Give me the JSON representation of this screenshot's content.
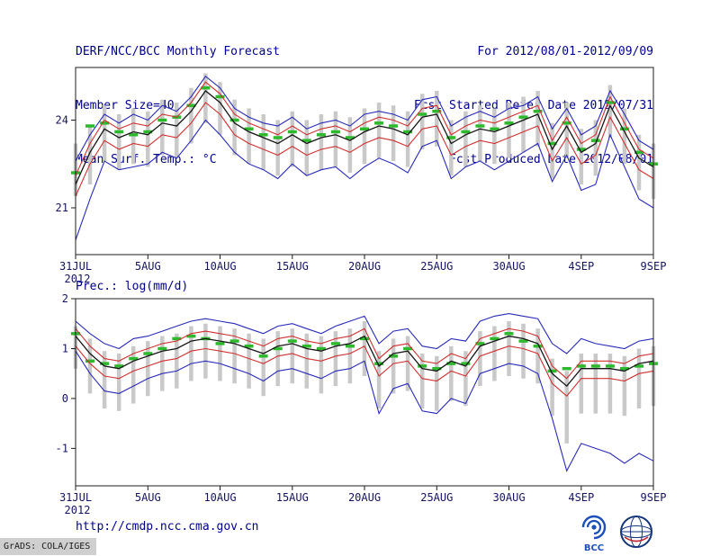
{
  "header": {
    "title": "DERF/NCC/BCC Monthly Forecast",
    "member_size": "Member Size=40",
    "for_period": "For 2012/08/01-2012/09/09",
    "refer_date": "Fcst Started Refer Date 2012/07/31",
    "produced_date": "Fcst Produced Date 2012/08/01"
  },
  "footer": {
    "url": "http://cmdp.ncc.cma.gov.cn",
    "grads_credit": "GrADS: COLA/IGES",
    "bcc_logo_label": "BCC"
  },
  "colors": {
    "header_text": "#00008b",
    "chart_text": "#15155f",
    "axis": "#1c1c1c",
    "spread_bar": "#c9c9c9",
    "climatology_green": "#2eb82e",
    "quartile_red": "#d03030",
    "envelope_blue": "#2a2ab8",
    "mean_black": "#151515"
  },
  "chart_data": [
    {
      "type": "line",
      "title": "Mean Surf. Temp.: °C",
      "x_tick_labels": [
        "31JUL",
        "5AUG",
        "10AUG",
        "15AUG",
        "20AUG",
        "25AUG",
        "30AUG",
        "4SEP",
        "9SEP"
      ],
      "x_tick_positions": [
        0,
        5,
        10,
        15,
        20,
        25,
        30,
        35,
        40
      ],
      "x_year_label": "2012",
      "ylim": [
        19.4,
        25.8
      ],
      "yticks": [
        21,
        24
      ],
      "grid": false,
      "legend": "none",
      "series": [
        {
          "name": "ensemble-max",
          "color": "#2a2ab8",
          "width": 1.1,
          "values": [
            22.6,
            23.5,
            24.2,
            23.9,
            24.2,
            24.0,
            24.5,
            24.3,
            24.8,
            25.5,
            25.1,
            24.4,
            24.1,
            23.9,
            23.8,
            24.1,
            23.7,
            23.9,
            24.0,
            23.8,
            24.2,
            24.3,
            24.2,
            24.0,
            24.7,
            24.8,
            23.8,
            24.1,
            24.3,
            24.1,
            24.4,
            24.5,
            24.8,
            23.7,
            24.4,
            23.5,
            23.8,
            25.0,
            24.2,
            23.3,
            23.0
          ]
        },
        {
          "name": "upper-quartile",
          "color": "#d03030",
          "width": 1.1,
          "values": [
            22.1,
            23.2,
            24.0,
            23.7,
            23.9,
            23.8,
            24.2,
            24.1,
            24.6,
            25.3,
            24.9,
            24.2,
            23.9,
            23.7,
            23.5,
            23.8,
            23.5,
            23.7,
            23.8,
            23.6,
            23.9,
            24.1,
            24.0,
            23.8,
            24.4,
            24.5,
            23.5,
            23.8,
            24.0,
            23.9,
            24.1,
            24.3,
            24.5,
            23.3,
            24.1,
            23.2,
            23.5,
            24.8,
            23.9,
            23.0,
            22.7
          ]
        },
        {
          "name": "ensemble-mean",
          "color": "#151515",
          "width": 1.3,
          "values": [
            21.8,
            22.9,
            23.7,
            23.4,
            23.6,
            23.5,
            23.9,
            23.8,
            24.3,
            25.0,
            24.6,
            23.9,
            23.6,
            23.4,
            23.2,
            23.5,
            23.2,
            23.4,
            23.5,
            23.3,
            23.6,
            23.8,
            23.7,
            23.5,
            24.1,
            24.2,
            23.2,
            23.5,
            23.7,
            23.6,
            23.8,
            24.0,
            24.2,
            23.0,
            23.8,
            22.9,
            23.2,
            24.5,
            23.6,
            22.7,
            22.4
          ]
        },
        {
          "name": "lower-quartile",
          "color": "#d03030",
          "width": 1.1,
          "values": [
            21.4,
            22.5,
            23.3,
            23.0,
            23.2,
            23.1,
            23.5,
            23.4,
            23.9,
            24.6,
            24.2,
            23.5,
            23.2,
            23.0,
            22.8,
            23.1,
            22.8,
            23.0,
            23.1,
            22.9,
            23.2,
            23.4,
            23.3,
            23.1,
            23.7,
            23.8,
            22.8,
            23.1,
            23.3,
            23.2,
            23.4,
            23.6,
            23.8,
            22.6,
            23.4,
            22.5,
            22.8,
            24.1,
            23.2,
            22.3,
            22.0
          ]
        },
        {
          "name": "ensemble-min",
          "color": "#2a2ab8",
          "width": 1.1,
          "values": [
            19.9,
            21.3,
            22.6,
            22.3,
            22.4,
            22.5,
            22.9,
            22.7,
            23.3,
            24.0,
            23.5,
            22.9,
            22.5,
            22.3,
            22.0,
            22.5,
            22.1,
            22.3,
            22.4,
            22.0,
            22.4,
            22.7,
            22.5,
            22.2,
            23.1,
            23.3,
            22.0,
            22.4,
            22.6,
            22.3,
            22.6,
            22.9,
            23.2,
            21.9,
            22.8,
            21.6,
            21.8,
            23.5,
            22.4,
            21.3,
            21.0
          ]
        }
      ],
      "bars": {
        "name": "ensemble-spread-bar",
        "color": "#c9c9c9",
        "top": [
          23.2,
          23.8,
          24.5,
          24.2,
          24.4,
          24.3,
          24.7,
          24.6,
          25.1,
          25.6,
          25.3,
          24.7,
          24.4,
          24.2,
          24.0,
          24.3,
          24.0,
          24.2,
          24.3,
          24.1,
          24.4,
          24.6,
          24.5,
          24.3,
          24.9,
          25.0,
          24.0,
          24.3,
          24.5,
          24.4,
          24.6,
          24.8,
          25.0,
          23.9,
          24.6,
          23.7,
          24.0,
          25.2,
          24.4,
          23.5,
          23.2
        ],
        "bottom": [
          21.4,
          21.8,
          22.6,
          22.3,
          22.5,
          22.4,
          22.8,
          22.7,
          23.2,
          23.9,
          23.5,
          22.8,
          22.5,
          22.3,
          22.1,
          22.4,
          22.1,
          22.3,
          22.4,
          22.2,
          22.5,
          22.7,
          22.6,
          22.4,
          23.0,
          23.1,
          22.1,
          22.4,
          22.6,
          22.5,
          22.7,
          22.9,
          23.1,
          22.0,
          22.7,
          21.8,
          22.1,
          23.4,
          22.5,
          21.6,
          21.3
        ]
      },
      "dashes": {
        "name": "climatology-dash",
        "color": "#2eb82e",
        "values": [
          22.2,
          23.8,
          23.9,
          23.6,
          23.5,
          23.6,
          24.0,
          24.1,
          24.5,
          25.1,
          24.8,
          24.0,
          23.7,
          23.5,
          23.4,
          23.6,
          23.3,
          23.5,
          23.6,
          23.4,
          23.7,
          23.9,
          23.8,
          23.6,
          24.2,
          24.3,
          23.4,
          23.6,
          23.8,
          23.7,
          23.9,
          24.1,
          24.3,
          23.2,
          23.9,
          23.0,
          23.3,
          24.6,
          23.7,
          22.9,
          22.5
        ]
      }
    },
    {
      "type": "line",
      "title": "Prec.: log(mm/d)",
      "x_tick_labels": [
        "31JUL",
        "5AUG",
        "10AUG",
        "15AUG",
        "20AUG",
        "25AUG",
        "30AUG",
        "4SEP",
        "9SEP"
      ],
      "x_tick_positions": [
        0,
        5,
        10,
        15,
        20,
        25,
        30,
        35,
        40
      ],
      "x_year_label": "2012",
      "ylim": [
        -1.75,
        2.0
      ],
      "yticks": [
        -1,
        0,
        1,
        2
      ],
      "grid": false,
      "legend": "none",
      "series": [
        {
          "name": "ensemble-max",
          "color": "#2a2ab8",
          "width": 1.1,
          "values": [
            1.55,
            1.3,
            1.1,
            1.0,
            1.2,
            1.25,
            1.35,
            1.45,
            1.55,
            1.6,
            1.55,
            1.5,
            1.4,
            1.3,
            1.45,
            1.5,
            1.4,
            1.3,
            1.45,
            1.55,
            1.65,
            1.1,
            1.35,
            1.4,
            1.05,
            1.0,
            1.2,
            1.15,
            1.55,
            1.65,
            1.7,
            1.65,
            1.6,
            1.1,
            0.9,
            1.2,
            1.1,
            1.05,
            1.0,
            1.15,
            1.2
          ]
        },
        {
          "name": "upper-quartile",
          "color": "#d03030",
          "width": 1.1,
          "values": [
            1.4,
            1.05,
            0.8,
            0.75,
            0.9,
            1.0,
            1.1,
            1.15,
            1.3,
            1.35,
            1.3,
            1.25,
            1.15,
            1.05,
            1.2,
            1.25,
            1.15,
            1.1,
            1.2,
            1.25,
            1.4,
            0.8,
            1.05,
            1.1,
            0.75,
            0.7,
            0.9,
            0.8,
            1.2,
            1.3,
            1.4,
            1.35,
            1.25,
            0.65,
            0.4,
            0.75,
            0.75,
            0.75,
            0.7,
            0.85,
            0.9
          ]
        },
        {
          "name": "ensemble-mean",
          "color": "#151515",
          "width": 1.3,
          "values": [
            1.25,
            0.9,
            0.65,
            0.6,
            0.75,
            0.85,
            0.95,
            1.0,
            1.15,
            1.2,
            1.15,
            1.1,
            1.0,
            0.9,
            1.05,
            1.1,
            1.0,
            0.95,
            1.05,
            1.1,
            1.25,
            0.65,
            0.9,
            0.95,
            0.6,
            0.55,
            0.75,
            0.65,
            1.05,
            1.15,
            1.25,
            1.2,
            1.1,
            0.5,
            0.25,
            0.6,
            0.6,
            0.6,
            0.55,
            0.7,
            0.75
          ]
        },
        {
          "name": "lower-quartile",
          "color": "#d03030",
          "width": 1.1,
          "values": [
            1.05,
            0.7,
            0.45,
            0.4,
            0.55,
            0.65,
            0.75,
            0.8,
            0.95,
            1.0,
            0.95,
            0.9,
            0.8,
            0.7,
            0.85,
            0.9,
            0.8,
            0.75,
            0.85,
            0.9,
            1.05,
            0.45,
            0.7,
            0.75,
            0.4,
            0.35,
            0.55,
            0.45,
            0.85,
            0.95,
            1.05,
            1.0,
            0.9,
            0.3,
            0.05,
            0.4,
            0.4,
            0.4,
            0.35,
            0.5,
            0.55
          ]
        },
        {
          "name": "ensemble-min",
          "color": "#2a2ab8",
          "width": 1.1,
          "values": [
            0.95,
            0.5,
            0.15,
            0.1,
            0.25,
            0.4,
            0.5,
            0.55,
            0.7,
            0.75,
            0.7,
            0.6,
            0.5,
            0.35,
            0.55,
            0.6,
            0.5,
            0.4,
            0.55,
            0.6,
            0.75,
            -0.3,
            0.2,
            0.3,
            -0.25,
            -0.3,
            0.0,
            -0.1,
            0.5,
            0.6,
            0.7,
            0.65,
            0.5,
            -0.4,
            -1.45,
            -0.9,
            -1.0,
            -1.1,
            -1.3,
            -1.1,
            -1.25
          ]
        }
      ],
      "bars": {
        "name": "ensemble-spread-bar",
        "color": "#c9c9c9",
        "top": [
          1.45,
          1.2,
          0.95,
          0.9,
          1.05,
          1.15,
          1.25,
          1.3,
          1.45,
          1.5,
          1.45,
          1.4,
          1.3,
          1.2,
          1.35,
          1.4,
          1.3,
          1.25,
          1.35,
          1.4,
          1.55,
          0.95,
          1.2,
          1.25,
          0.9,
          0.85,
          1.05,
          0.95,
          1.35,
          1.45,
          1.55,
          1.5,
          1.4,
          0.8,
          0.55,
          0.9,
          0.9,
          0.9,
          0.85,
          1.0,
          1.05
        ],
        "bottom": [
          0.6,
          0.1,
          -0.2,
          -0.25,
          -0.1,
          0.05,
          0.15,
          0.2,
          0.35,
          0.4,
          0.35,
          0.3,
          0.2,
          0.05,
          0.25,
          0.3,
          0.2,
          0.1,
          0.25,
          0.3,
          0.45,
          -0.2,
          0.1,
          0.15,
          -0.2,
          -0.25,
          -0.05,
          -0.15,
          0.25,
          0.35,
          0.45,
          0.4,
          0.3,
          -0.35,
          -0.9,
          -0.3,
          -0.3,
          -0.3,
          -0.35,
          -0.2,
          -0.15
        ]
      },
      "dashes": {
        "name": "climatology-dash",
        "color": "#2eb82e",
        "values": [
          1.3,
          0.75,
          0.7,
          0.65,
          0.8,
          0.9,
          1.0,
          1.2,
          1.25,
          1.2,
          1.1,
          1.15,
          1.05,
          0.85,
          1.0,
          1.15,
          1.05,
          1.0,
          1.1,
          1.05,
          1.2,
          0.7,
          0.85,
          1.0,
          0.65,
          0.6,
          0.7,
          0.7,
          1.1,
          1.2,
          1.3,
          1.15,
          1.05,
          0.55,
          0.6,
          0.65,
          0.65,
          0.65,
          0.6,
          0.65,
          0.7
        ]
      }
    }
  ]
}
